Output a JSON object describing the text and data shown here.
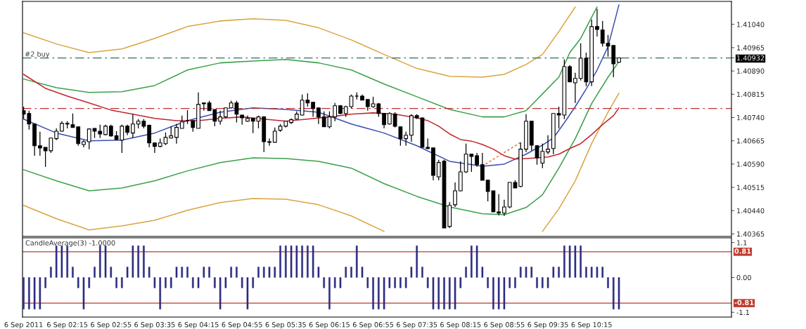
{
  "chart_data": [
    {
      "type": "candlestick",
      "tick_labels": "y",
      "x": [
        "2011-09-06T01:35",
        "2011-09-06T01:40",
        "2011-09-06T01:45",
        "2011-09-06T01:50",
        "2011-09-06T01:55",
        "2011-09-06T02:00",
        "2011-09-06T02:05",
        "2011-09-06T02:10",
        "2011-09-06T02:15",
        "2011-09-06T02:20",
        "2011-09-06T02:25",
        "2011-09-06T02:30",
        "2011-09-06T02:35",
        "2011-09-06T02:40",
        "2011-09-06T02:45",
        "2011-09-06T02:50",
        "2011-09-06T02:55",
        "2011-09-06T03:00",
        "2011-09-06T03:05",
        "2011-09-06T03:10",
        "2011-09-06T03:15",
        "2011-09-06T03:20",
        "2011-09-06T03:25",
        "2011-09-06T03:30",
        "2011-09-06T03:35",
        "2011-09-06T03:40",
        "2011-09-06T03:45",
        "2011-09-06T03:50",
        "2011-09-06T03:55",
        "2011-09-06T04:00",
        "2011-09-06T04:05",
        "2011-09-06T04:10",
        "2011-09-06T04:15",
        "2011-09-06T04:20",
        "2011-09-06T04:25",
        "2011-09-06T04:30",
        "2011-09-06T04:35",
        "2011-09-06T04:40",
        "2011-09-06T04:45",
        "2011-09-06T04:50",
        "2011-09-06T04:55",
        "2011-09-06T05:00",
        "2011-09-06T05:05",
        "2011-09-06T05:10",
        "2011-09-06T05:15",
        "2011-09-06T05:20",
        "2011-09-06T05:25",
        "2011-09-06T05:30",
        "2011-09-06T05:35",
        "2011-09-06T05:40",
        "2011-09-06T05:45",
        "2011-09-06T05:50",
        "2011-09-06T05:55",
        "2011-09-06T06:00",
        "2011-09-06T06:05",
        "2011-09-06T06:10",
        "2011-09-06T06:15",
        "2011-09-06T06:20",
        "2011-09-06T06:25",
        "2011-09-06T06:30",
        "2011-09-06T06:35",
        "2011-09-06T06:40",
        "2011-09-06T06:45",
        "2011-09-06T06:50",
        "2011-09-06T06:55",
        "2011-09-06T07:00",
        "2011-09-06T07:05",
        "2011-09-06T07:10",
        "2011-09-06T07:15",
        "2011-09-06T07:20",
        "2011-09-06T07:25",
        "2011-09-06T07:30",
        "2011-09-06T07:35",
        "2011-09-06T07:40",
        "2011-09-06T07:45",
        "2011-09-06T07:50",
        "2011-09-06T07:55",
        "2011-09-06T08:00",
        "2011-09-06T08:05",
        "2011-09-06T08:10",
        "2011-09-06T08:15",
        "2011-09-06T08:20",
        "2011-09-06T08:25",
        "2011-09-06T08:30",
        "2011-09-06T08:35",
        "2011-09-06T08:40",
        "2011-09-06T08:45",
        "2011-09-06T08:50",
        "2011-09-06T08:55",
        "2011-09-06T09:00",
        "2011-09-06T09:05",
        "2011-09-06T09:10",
        "2011-09-06T09:15",
        "2011-09-06T09:20",
        "2011-09-06T09:25",
        "2011-09-06T09:30",
        "2011-09-06T09:35",
        "2011-09-06T09:40",
        "2011-09-06T09:45",
        "2011-09-06T09:50",
        "2011-09-06T09:55",
        "2011-09-06T10:00",
        "2011-09-06T10:05",
        "2011-09-06T10:10",
        "2011-09-06T10:15",
        "2011-09-06T10:20",
        "2011-09-06T10:25",
        "2011-09-06T10:30",
        "2011-09-06T10:35",
        "2011-09-06T10:40"
      ],
      "ohlc": [
        [
          1.40762,
          1.40775,
          1.40735,
          1.40751
        ],
        [
          1.40753,
          1.40762,
          1.40701,
          1.40719
        ],
        [
          1.40719,
          1.40719,
          1.40617,
          1.40649
        ],
        [
          1.40649,
          1.40694,
          1.40617,
          1.40642
        ],
        [
          1.40644,
          1.40644,
          1.40581,
          1.40633
        ],
        [
          1.40633,
          1.40674,
          1.40626,
          1.40674
        ],
        [
          1.40672,
          1.40705,
          1.40667,
          1.40696
        ],
        [
          1.40696,
          1.40728,
          1.40694,
          1.40721
        ],
        [
          1.40719,
          1.40728,
          1.40705,
          1.40721
        ],
        [
          1.40717,
          1.40753,
          1.40708,
          1.40708
        ],
        [
          1.4071,
          1.4071,
          1.40649,
          1.40656
        ],
        [
          1.40653,
          1.40667,
          1.40644,
          1.40662
        ],
        [
          1.40662,
          1.40705,
          1.40638,
          1.40703
        ],
        [
          1.40705,
          1.40705,
          1.40674,
          1.40696
        ],
        [
          1.40696,
          1.40717,
          1.40674,
          1.40687
        ],
        [
          1.40685,
          1.40717,
          1.40683,
          1.40712
        ],
        [
          1.40712,
          1.40717,
          1.40678,
          1.40681
        ],
        [
          1.40681,
          1.40696,
          1.40667,
          1.40669
        ],
        [
          1.40667,
          1.40717,
          1.40626,
          1.40712
        ],
        [
          1.40712,
          1.40717,
          1.40683,
          1.40692
        ],
        [
          1.4069,
          1.40751,
          1.40674,
          1.40719
        ],
        [
          1.40719,
          1.40735,
          1.40705,
          1.40728
        ],
        [
          1.40728,
          1.40735,
          1.40705,
          1.40712
        ],
        [
          1.40715,
          1.40717,
          1.40644,
          1.40658
        ],
        [
          1.40658,
          1.40658,
          1.40626,
          1.40647
        ],
        [
          1.40647,
          1.40672,
          1.40644,
          1.40658
        ],
        [
          1.40656,
          1.40692,
          1.40651,
          1.40676
        ],
        [
          1.40674,
          1.40712,
          1.40672,
          1.40681
        ],
        [
          1.40676,
          1.40719,
          1.40656,
          1.40708
        ],
        [
          1.40705,
          1.40746,
          1.40705,
          1.40726
        ],
        [
          1.4073,
          1.40764,
          1.40719,
          1.4073
        ],
        [
          1.4073,
          1.4073,
          1.40694,
          1.40708
        ],
        [
          1.40705,
          1.40821,
          1.40705,
          1.40782
        ],
        [
          1.40787,
          1.40787,
          1.40762,
          1.40784
        ],
        [
          1.40787,
          1.40794,
          1.40762,
          1.40762
        ],
        [
          1.40766,
          1.40766,
          1.40712,
          1.40728
        ],
        [
          1.40728,
          1.40762,
          1.40717,
          1.40742
        ],
        [
          1.40742,
          1.40771,
          1.40739,
          1.40771
        ],
        [
          1.40771,
          1.40794,
          1.40769,
          1.40787
        ],
        [
          1.40787,
          1.40794,
          1.40724,
          1.40751
        ],
        [
          1.40748,
          1.40748,
          1.40717,
          1.40739
        ],
        [
          1.40728,
          1.40746,
          1.40726,
          1.40737
        ],
        [
          1.40737,
          1.40737,
          1.4069,
          1.40728
        ],
        [
          1.40728,
          1.40746,
          1.40705,
          1.40742
        ],
        [
          1.40742,
          1.40744,
          1.40629,
          1.40662
        ],
        [
          1.40662,
          1.40672,
          1.40649,
          1.4066
        ],
        [
          1.4066,
          1.40708,
          1.4066,
          1.40696
        ],
        [
          1.40699,
          1.40719,
          1.40694,
          1.40712
        ],
        [
          1.40712,
          1.4073,
          1.40708,
          1.40728
        ],
        [
          1.40724,
          1.40737,
          1.40719,
          1.40733
        ],
        [
          1.40735,
          1.4076,
          1.40733,
          1.40751
        ],
        [
          1.40748,
          1.40814,
          1.40746,
          1.40796
        ],
        [
          1.40796,
          1.40818,
          1.40775,
          1.40787
        ],
        [
          1.40789,
          1.40789,
          1.40742,
          1.40769
        ],
        [
          1.40771,
          1.40771,
          1.40719,
          1.40742
        ],
        [
          1.40742,
          1.4076,
          1.4071,
          1.4071
        ],
        [
          1.4071,
          1.4076,
          1.40705,
          1.40742
        ],
        [
          1.40742,
          1.40787,
          1.40728,
          1.40778
        ],
        [
          1.40778,
          1.4078,
          1.40751,
          1.40753
        ],
        [
          1.40753,
          1.40778,
          1.40742,
          1.40775
        ],
        [
          1.40775,
          1.40814,
          1.40769,
          1.40809
        ],
        [
          1.40809,
          1.40821,
          1.40798,
          1.40809
        ],
        [
          1.40809,
          1.40814,
          1.40796,
          1.40796
        ],
        [
          1.40798,
          1.40798,
          1.40762,
          1.40775
        ],
        [
          1.40775,
          1.40807,
          1.40771,
          1.40784
        ],
        [
          1.40784,
          1.40787,
          1.40742,
          1.40753
        ],
        [
          1.40753,
          1.40753,
          1.40705,
          1.40717
        ],
        [
          1.40719,
          1.40757,
          1.40717,
          1.40753
        ],
        [
          1.40751,
          1.40757,
          1.40708,
          1.40712
        ],
        [
          1.4071,
          1.4071,
          1.40649,
          1.40672
        ],
        [
          1.40672,
          1.40694,
          1.40649,
          1.40683
        ],
        [
          1.40683,
          1.40751,
          1.40662,
          1.40746
        ],
        [
          1.40746,
          1.40751,
          1.40735,
          1.40739
        ],
        [
          1.40739,
          1.40739,
          1.40644,
          1.40644
        ],
        [
          1.40644,
          1.40672,
          1.40638,
          1.4064
        ],
        [
          1.40642,
          1.40642,
          1.40538,
          1.40554
        ],
        [
          1.40549,
          1.40604,
          1.40538,
          1.40595
        ],
        [
          1.40599,
          1.40604,
          1.40384,
          1.40384
        ],
        [
          1.40389,
          1.40468,
          1.40384,
          1.40457
        ],
        [
          1.40459,
          1.40531,
          1.40452,
          1.40504
        ],
        [
          1.40504,
          1.40599,
          1.40502,
          1.40565
        ],
        [
          1.40565,
          1.40656,
          1.40561,
          1.40622
        ],
        [
          1.40622,
          1.40622,
          1.40565,
          1.40615
        ],
        [
          1.40617,
          1.40626,
          1.40581,
          1.40588
        ],
        [
          1.40588,
          1.40626,
          1.40538,
          1.40538
        ],
        [
          1.40538,
          1.40538,
          1.4047,
          1.40502
        ],
        [
          1.40504,
          1.40504,
          1.40436,
          1.40436
        ],
        [
          1.40436,
          1.40493,
          1.40425,
          1.40432
        ],
        [
          1.40432,
          1.40475,
          1.40423,
          1.40452
        ],
        [
          1.40452,
          1.40531,
          1.40448,
          1.40531
        ],
        [
          1.40531,
          1.40538,
          1.40513,
          1.40513
        ],
        [
          1.40518,
          1.4066,
          1.40515,
          1.40638
        ],
        [
          1.40638,
          1.40751,
          1.40629,
          1.40728
        ],
        [
          1.40728,
          1.40728,
          1.40633,
          1.40651
        ],
        [
          1.40649,
          1.40651,
          1.40588,
          1.4061
        ],
        [
          1.40593,
          1.40656,
          1.40577,
          1.40631
        ],
        [
          1.40629,
          1.40683,
          1.40622,
          1.40638
        ],
        [
          1.4064,
          1.40753,
          1.40622,
          1.40753
        ],
        [
          1.40753,
          1.40775,
          1.40705,
          1.40748
        ],
        [
          1.40748,
          1.40927,
          1.40735,
          1.40904
        ],
        [
          1.40904,
          1.40909,
          1.40855,
          1.40855
        ],
        [
          1.40852,
          1.40884,
          1.40787,
          1.40866
        ],
        [
          1.40866,
          1.40979,
          1.40859,
          1.40931
        ],
        [
          1.40931,
          1.40949,
          1.40841,
          1.40855
        ],
        [
          1.40855,
          1.41056,
          1.40841,
          1.41033
        ],
        [
          1.41033,
          1.4109,
          1.41001,
          1.41024
        ],
        [
          1.41022,
          1.41051,
          1.40968,
          1.40979
        ],
        [
          1.40979,
          1.41006,
          1.40936,
          1.4097
        ],
        [
          1.40972,
          1.40972,
          1.4087,
          1.40913
        ],
        [
          1.40918,
          1.40932,
          1.40916,
          1.40932
        ]
      ],
      "series": [
        {
          "type": "line",
          "color": "#3a4fb0",
          "x": [
            "2011-09-06T01:35",
            "2011-09-06T02:05",
            "2011-09-06T02:35",
            "2011-09-06T03:05",
            "2011-09-06T03:35",
            "2011-09-06T04:05",
            "2011-09-06T04:35",
            "2011-09-06T05:05",
            "2011-09-06T05:35",
            "2011-09-06T06:05",
            "2011-09-06T06:35",
            "2011-09-06T07:05",
            "2011-09-06T07:35",
            "2011-09-06T08:05",
            "2011-09-06T08:35",
            "2011-09-06T08:55",
            "2011-09-06T09:15",
            "2011-09-06T09:30",
            "2011-09-06T09:40",
            "2011-09-06T09:50",
            "2011-09-06T10:00",
            "2011-09-06T10:10",
            "2011-09-06T10:20",
            "2011-09-06T10:30",
            "2011-09-06T10:40"
          ],
          "values": [
            1.40735,
            1.4069,
            1.40665,
            1.40667,
            1.4069,
            1.4073,
            1.40757,
            1.40771,
            1.40766,
            1.40757,
            1.40719,
            1.4069,
            1.40649,
            1.40599,
            1.40583,
            1.4059,
            1.40622,
            1.40651,
            1.40674,
            1.40723,
            1.40775,
            1.40832,
            1.40893,
            1.40968,
            1.41103
          ]
        },
        {
          "type": "line",
          "color": "#3aa04a",
          "x": [
            "2011-09-06T01:35",
            "2011-09-06T02:05",
            "2011-09-06T02:35",
            "2011-09-06T03:05",
            "2011-09-06T03:35",
            "2011-09-06T04:05",
            "2011-09-06T04:35",
            "2011-09-06T05:05",
            "2011-09-06T05:35",
            "2011-09-06T06:05",
            "2011-09-06T06:35",
            "2011-09-06T07:05",
            "2011-09-06T07:35",
            "2011-09-06T08:05",
            "2011-09-06T08:35",
            "2011-09-06T08:55",
            "2011-09-06T09:15",
            "2011-09-06T09:30",
            "2011-09-06T09:45",
            "2011-09-06T09:55",
            "2011-09-06T10:05",
            "2011-09-06T10:15",
            "2011-09-06T10:20"
          ],
          "values": [
            1.40864,
            1.40836,
            1.40821,
            1.40823,
            1.40843,
            1.40893,
            1.40916,
            1.40922,
            1.40927,
            1.40916,
            1.40893,
            1.40848,
            1.40807,
            1.40766,
            1.40742,
            1.40742,
            1.40762,
            1.40816,
            1.4087,
            1.40949,
            1.40995,
            1.41063,
            1.41096
          ]
        },
        {
          "type": "line",
          "color": "#3aa04a",
          "x": [
            "2011-09-06T01:35",
            "2011-09-06T02:05",
            "2011-09-06T02:35",
            "2011-09-06T03:05",
            "2011-09-06T03:35",
            "2011-09-06T04:05",
            "2011-09-06T04:35",
            "2011-09-06T05:05",
            "2011-09-06T05:35",
            "2011-09-06T06:05",
            "2011-09-06T06:35",
            "2011-09-06T07:05",
            "2011-09-06T07:35",
            "2011-09-06T08:05",
            "2011-09-06T08:35",
            "2011-09-06T08:55",
            "2011-09-06T09:15",
            "2011-09-06T09:30",
            "2011-09-06T09:45",
            "2011-09-06T10:00",
            "2011-09-06T10:15",
            "2011-09-06T10:30",
            "2011-09-06T10:40"
          ],
          "values": [
            1.40572,
            1.40536,
            1.40504,
            1.40513,
            1.40536,
            1.40568,
            1.40595,
            1.4061,
            1.40608,
            1.40599,
            1.40577,
            1.40527,
            1.40486,
            1.40452,
            1.4043,
            1.40427,
            1.4045,
            1.40491,
            1.40577,
            1.40672,
            1.40785,
            1.4087,
            1.4092
          ]
        },
        {
          "type": "line",
          "color": "#d9a441",
          "x": [
            "2011-09-06T01:35",
            "2011-09-06T02:05",
            "2011-09-06T02:35",
            "2011-09-06T03:05",
            "2011-09-06T03:35",
            "2011-09-06T04:05",
            "2011-09-06T04:35",
            "2011-09-06T05:05",
            "2011-09-06T05:35",
            "2011-09-06T06:05",
            "2011-09-06T06:35",
            "2011-09-06T07:05",
            "2011-09-06T07:35",
            "2011-09-06T08:05",
            "2011-09-06T08:35",
            "2011-09-06T08:55",
            "2011-09-06T09:15",
            "2011-09-06T09:30",
            "2011-09-06T09:45",
            "2011-09-06T10:00"
          ],
          "values": [
            1.41013,
            1.40977,
            1.40949,
            1.40961,
            1.40995,
            1.41033,
            1.41051,
            1.41058,
            1.41053,
            1.41029,
            1.4099,
            1.40943,
            1.40898,
            1.40873,
            1.4087,
            1.40879,
            1.40911,
            1.40943,
            1.41017,
            1.41096
          ]
        },
        {
          "type": "line",
          "color": "#d9a441",
          "x": [
            "2011-09-06T01:35",
            "2011-09-06T02:05",
            "2011-09-06T02:35",
            "2011-09-06T03:05",
            "2011-09-06T03:35",
            "2011-09-06T04:05",
            "2011-09-06T04:35",
            "2011-09-06T05:05",
            "2011-09-06T05:35",
            "2011-09-06T06:05",
            "2011-09-06T06:35",
            "2011-09-06T07:05"
          ],
          "values": [
            1.40457,
            1.40414,
            1.40378,
            1.40391,
            1.40409,
            1.40441,
            1.40466,
            1.40479,
            1.40477,
            1.40459,
            1.40423,
            1.40373
          ]
        },
        {
          "type": "line",
          "color": "#d9a441",
          "x": [
            "2011-09-06T09:30",
            "2011-09-06T09:45",
            "2011-09-06T10:00",
            "2011-09-06T10:15",
            "2011-09-06T10:30",
            "2011-09-06T10:40"
          ],
          "values": [
            1.40373,
            1.40446,
            1.40536,
            1.40656,
            1.40757,
            1.40818
          ]
        },
        {
          "type": "line",
          "color": "#c0272d",
          "x": [
            "2011-09-06T01:35",
            "2011-09-06T01:55",
            "2011-09-06T02:15",
            "2011-09-06T02:35",
            "2011-09-06T02:55",
            "2011-09-06T03:15",
            "2011-09-06T03:35",
            "2011-09-06T03:55",
            "2011-09-06T04:15",
            "2011-09-06T04:35",
            "2011-09-06T04:55",
            "2011-09-06T05:15",
            "2011-09-06T05:35",
            "2011-09-06T05:55",
            "2011-09-06T06:15",
            "2011-09-06T06:35",
            "2011-09-06T06:55",
            "2011-09-06T07:15",
            "2011-09-06T07:35",
            "2011-09-06T07:45",
            "2011-09-06T07:55",
            "2011-09-06T08:05",
            "2011-09-06T08:15",
            "2011-09-06T08:25",
            "2011-09-06T08:35",
            "2011-09-06T08:45",
            "2011-09-06T08:55",
            "2011-09-06T09:05",
            "2011-09-06T09:15",
            "2011-09-06T09:25",
            "2011-09-06T09:35",
            "2011-09-06T09:45",
            "2011-09-06T09:55",
            "2011-09-06T10:05",
            "2011-09-06T10:15",
            "2011-09-06T10:25",
            "2011-09-06T10:35",
            "2011-09-06T10:40"
          ],
          "values": [
            1.40879,
            1.40834,
            1.40809,
            1.40787,
            1.40764,
            1.40751,
            1.40737,
            1.4073,
            1.4073,
            1.40737,
            1.40742,
            1.40735,
            1.40728,
            1.40735,
            1.40742,
            1.40751,
            1.40755,
            1.40751,
            1.40739,
            1.4073,
            1.40712,
            1.40687,
            1.40669,
            1.40664,
            1.40653,
            1.40638,
            1.40617,
            1.40606,
            1.40608,
            1.4061,
            1.40613,
            1.40622,
            1.4064,
            1.40656,
            1.40685,
            1.40717,
            1.40746,
            1.40771
          ]
        },
        {
          "type": "line",
          "color": "#e0702a",
          "line_style": "dotted",
          "x": [
            "2011-09-06T08:38",
            "2011-09-06T09:10"
          ],
          "values": [
            1.4059,
            1.4066
          ]
        }
      ],
      "ref_lines": [
        {
          "axis": "y",
          "value": 1.40932,
          "label": "#2 buy",
          "color": "#2f6f5f",
          "line_style": "dashed"
        },
        {
          "axis": "y",
          "value": 1.40769,
          "color": "#c03030",
          "line_style": "dashed"
        }
      ],
      "xlim": [
        "2011-09-06T01:34",
        "2011-09-06T12:23"
      ],
      "ylim": [
        1.40357,
        1.41114
      ],
      "yticks": [
        {
          "value": 1.4104,
          "label": "1.41040"
        },
        {
          "value": 1.40965,
          "label": "1.40965"
        },
        {
          "value": 1.40932,
          "label": "1.40932"
        },
        {
          "value": 1.4089,
          "label": "1.40890"
        },
        {
          "value": 1.40815,
          "label": "1.40815"
        },
        {
          "value": 1.4074,
          "label": "1.40740"
        },
        {
          "value": 1.40665,
          "label": "1.40665"
        },
        {
          "value": 1.4059,
          "label": "1.40590"
        },
        {
          "value": 1.40515,
          "label": "1.40515"
        },
        {
          "value": 1.4044,
          "label": "1.40440"
        },
        {
          "value": 1.40365,
          "label": "1.40365"
        }
      ]
    },
    {
      "type": "bar",
      "title": "CandleAverage(3) -1.0000",
      "color": "#2b2b80",
      "x": [
        "2011-09-06T01:35",
        "2011-09-06T01:40",
        "2011-09-06T01:45",
        "2011-09-06T01:50",
        "2011-09-06T01:55",
        "2011-09-06T02:00",
        "2011-09-06T02:05",
        "2011-09-06T02:10",
        "2011-09-06T02:15",
        "2011-09-06T02:20",
        "2011-09-06T02:25",
        "2011-09-06T02:30",
        "2011-09-06T02:35",
        "2011-09-06T02:40",
        "2011-09-06T02:45",
        "2011-09-06T02:50",
        "2011-09-06T02:55",
        "2011-09-06T03:00",
        "2011-09-06T03:05",
        "2011-09-06T03:10",
        "2011-09-06T03:15",
        "2011-09-06T03:20",
        "2011-09-06T03:25",
        "2011-09-06T03:30",
        "2011-09-06T03:35",
        "2011-09-06T03:40",
        "2011-09-06T03:45",
        "2011-09-06T03:50",
        "2011-09-06T03:55",
        "2011-09-06T04:00",
        "2011-09-06T04:05",
        "2011-09-06T04:10",
        "2011-09-06T04:15",
        "2011-09-06T04:20",
        "2011-09-06T04:25",
        "2011-09-06T04:30",
        "2011-09-06T04:35",
        "2011-09-06T04:40",
        "2011-09-06T04:45",
        "2011-09-06T04:50",
        "2011-09-06T04:55",
        "2011-09-06T05:00",
        "2011-09-06T05:05",
        "2011-09-06T05:10",
        "2011-09-06T05:15",
        "2011-09-06T05:20",
        "2011-09-06T05:25",
        "2011-09-06T05:30",
        "2011-09-06T05:35",
        "2011-09-06T05:40",
        "2011-09-06T05:45",
        "2011-09-06T05:50",
        "2011-09-06T05:55",
        "2011-09-06T06:00",
        "2011-09-06T06:05",
        "2011-09-06T06:10",
        "2011-09-06T06:15",
        "2011-09-06T06:20",
        "2011-09-06T06:25",
        "2011-09-06T06:30",
        "2011-09-06T06:35",
        "2011-09-06T06:40",
        "2011-09-06T06:45",
        "2011-09-06T06:50",
        "2011-09-06T06:55",
        "2011-09-06T07:00",
        "2011-09-06T07:05",
        "2011-09-06T07:10",
        "2011-09-06T07:15",
        "2011-09-06T07:20",
        "2011-09-06T07:25",
        "2011-09-06T07:30",
        "2011-09-06T07:35",
        "2011-09-06T07:40",
        "2011-09-06T07:45",
        "2011-09-06T07:50",
        "2011-09-06T07:55",
        "2011-09-06T08:00",
        "2011-09-06T08:05",
        "2011-09-06T08:10",
        "2011-09-06T08:15",
        "2011-09-06T08:20",
        "2011-09-06T08:25",
        "2011-09-06T08:30",
        "2011-09-06T08:35",
        "2011-09-06T08:40",
        "2011-09-06T08:45",
        "2011-09-06T08:50",
        "2011-09-06T08:55",
        "2011-09-06T09:00",
        "2011-09-06T09:05",
        "2011-09-06T09:10",
        "2011-09-06T09:15",
        "2011-09-06T09:20",
        "2011-09-06T09:25",
        "2011-09-06T09:30",
        "2011-09-06T09:35",
        "2011-09-06T09:40",
        "2011-09-06T09:45",
        "2011-09-06T09:50",
        "2011-09-06T09:55",
        "2011-09-06T10:00",
        "2011-09-06T10:05",
        "2011-09-06T10:10",
        "2011-09-06T10:15",
        "2011-09-06T10:20",
        "2011-09-06T10:25",
        "2011-09-06T10:30",
        "2011-09-06T10:35",
        "2011-09-06T10:40"
      ],
      "values": [
        -1,
        -1,
        -1,
        -1,
        -0.33,
        0.33,
        1,
        1,
        1,
        0.33,
        -0.33,
        -1,
        -0.33,
        0.33,
        1,
        1,
        0.33,
        -0.33,
        -0.33,
        0.33,
        1,
        1,
        1,
        0.33,
        -0.33,
        -1,
        -0.33,
        -0.33,
        0.33,
        0.33,
        0.33,
        -0.33,
        -0.33,
        0.33,
        0.33,
        -0.33,
        -1,
        -0.33,
        0.33,
        0.33,
        -0.33,
        -1,
        -0.33,
        0.33,
        0.33,
        0.33,
        0.33,
        1,
        1,
        1,
        1,
        1,
        1,
        1,
        0.33,
        -0.33,
        -1,
        -0.33,
        -0.33,
        0.33,
        0.33,
        1,
        0.33,
        -0.33,
        -1,
        -1,
        -1,
        -0.33,
        -0.33,
        -0.33,
        -0.33,
        0.33,
        1,
        0.33,
        -0.33,
        -1,
        -1,
        -1,
        -1,
        -1,
        -0.33,
        0.33,
        1,
        1,
        0.33,
        -0.33,
        -1,
        -1,
        -1,
        -0.33,
        -0.33,
        0.33,
        0.33,
        0.33,
        -0.33,
        -0.33,
        -0.33,
        0.33,
        0.33,
        1,
        1,
        1,
        1,
        0.33,
        0.33,
        0.33,
        0.33,
        -0.33,
        -1,
        -1
      ],
      "ref_lines": [
        {
          "axis": "y",
          "value": 0.81,
          "label": "0.81",
          "color": "#c0392b"
        },
        {
          "axis": "y",
          "value": -0.81,
          "label": "-0.81",
          "color": "#c0392b"
        }
      ],
      "xlim": [
        "2011-09-06T01:34",
        "2011-09-06T12:23"
      ],
      "xticks": [
        {
          "value": "2011-09-06T01:35",
          "label": "6 Sep 2011"
        },
        {
          "value": "2011-09-06T02:15",
          "label": "6 Sep 02:15"
        },
        {
          "value": "2011-09-06T02:55",
          "label": "6 Sep 02:55"
        },
        {
          "value": "2011-09-06T03:35",
          "label": "6 Sep 03:35"
        },
        {
          "value": "2011-09-06T04:15",
          "label": "6 Sep 04:15"
        },
        {
          "value": "2011-09-06T04:55",
          "label": "6 Sep 04:55"
        },
        {
          "value": "2011-09-06T05:35",
          "label": "6 Sep 05:35"
        },
        {
          "value": "2011-09-06T06:15",
          "label": "6 Sep 06:15"
        },
        {
          "value": "2011-09-06T06:55",
          "label": "6 Sep 06:55"
        },
        {
          "value": "2011-09-06T07:35",
          "label": "6 Sep 07:35"
        },
        {
          "value": "2011-09-06T08:15",
          "label": "6 Sep 08:15"
        },
        {
          "value": "2011-09-06T08:55",
          "label": "6 Sep 08:55"
        },
        {
          "value": "2011-09-06T09:35",
          "label": "6 Sep 09:35"
        },
        {
          "value": "2011-09-06T10:15",
          "label": "6 Sep 10:15"
        }
      ],
      "ylim": [
        -1.25,
        1.25
      ],
      "yticks": [
        1.1,
        {
          "value": 0,
          "label": "0.00"
        },
        -1.1
      ]
    }
  ]
}
